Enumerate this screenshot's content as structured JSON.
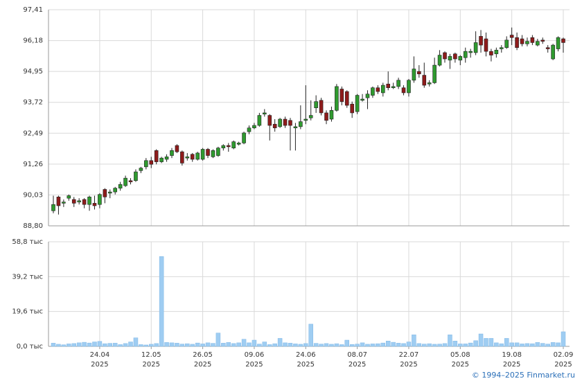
{
  "chart_data": {
    "type": "candlestick",
    "categories": [
      null,
      null,
      null,
      null,
      null,
      null,
      null,
      null,
      null,
      "24.04 2025",
      null,
      null,
      null,
      null,
      null,
      null,
      null,
      null,
      null,
      "12.05 2025",
      null,
      null,
      null,
      null,
      null,
      null,
      null,
      null,
      null,
      "26.05 2025",
      null,
      null,
      null,
      null,
      null,
      null,
      null,
      null,
      null,
      "09.06 2025",
      null,
      null,
      null,
      null,
      null,
      null,
      null,
      null,
      null,
      "24.06 2025",
      null,
      null,
      null,
      null,
      null,
      null,
      null,
      null,
      null,
      "08.07 2025",
      null,
      null,
      null,
      null,
      null,
      null,
      null,
      null,
      null,
      "22.07 2025",
      null,
      null,
      null,
      null,
      null,
      null,
      null,
      null,
      null,
      "05.08 2025",
      null,
      null,
      null,
      null,
      null,
      null,
      null,
      null,
      null,
      "19.08 2025",
      null,
      null,
      null,
      null,
      null,
      null,
      null,
      null,
      null,
      "02.09 2025"
    ],
    "open": [
      89.4,
      89.95,
      89.7,
      89.9,
      89.85,
      89.75,
      89.85,
      89.65,
      89.7,
      89.65,
      90.25,
      90.1,
      90.15,
      90.3,
      90.4,
      90.6,
      90.6,
      91.0,
      91.15,
      91.4,
      91.8,
      91.35,
      91.45,
      91.6,
      92.0,
      91.75,
      91.5,
      91.65,
      91.45,
      91.45,
      91.85,
      91.55,
      91.6,
      91.9,
      92.0,
      91.9,
      92.05,
      92.1,
      92.55,
      92.7,
      92.8,
      93.25,
      93.2,
      92.85,
      92.75,
      93.05,
      93.0,
      92.7,
      92.75,
      93.0,
      93.1,
      93.5,
      93.8,
      93.3,
      93.05,
      93.4,
      94.25,
      94.15,
      93.65,
      93.35,
      93.8,
      93.9,
      94.0,
      94.3,
      94.1,
      94.45,
      94.3,
      94.35,
      94.3,
      94.1,
      94.6,
      94.95,
      94.8,
      94.45,
      94.5,
      95.2,
      95.7,
      95.4,
      95.65,
      95.4,
      95.5,
      95.7,
      95.7,
      96.35,
      96.25,
      95.75,
      95.65,
      95.85,
      95.9,
      96.4,
      96.3,
      96.25,
      96.05,
      96.3,
      96.0,
      96.2,
      95.9,
      95.45,
      95.85,
      96.25
    ],
    "high": [
      90.0,
      90.0,
      89.85,
      90.05,
      89.95,
      89.9,
      89.9,
      90.0,
      90.0,
      90.1,
      90.3,
      90.25,
      90.35,
      90.55,
      90.8,
      90.7,
      91.05,
      91.15,
      91.5,
      91.55,
      91.85,
      91.55,
      91.65,
      91.9,
      92.05,
      91.8,
      91.7,
      91.7,
      91.75,
      91.9,
      91.9,
      91.85,
      91.95,
      92.05,
      92.1,
      92.2,
      92.15,
      92.55,
      92.8,
      92.9,
      93.3,
      93.45,
      93.25,
      93.05,
      93.1,
      93.15,
      93.1,
      92.9,
      93.6,
      94.4,
      93.8,
      94.0,
      93.9,
      93.4,
      93.55,
      94.45,
      94.35,
      94.2,
      93.75,
      94.05,
      94.05,
      94.2,
      94.35,
      94.4,
      94.5,
      94.95,
      94.5,
      94.7,
      94.4,
      94.65,
      95.55,
      95.2,
      95.3,
      94.6,
      95.5,
      95.8,
      95.75,
      95.65,
      95.7,
      95.6,
      95.9,
      95.85,
      96.55,
      96.6,
      96.5,
      95.85,
      95.9,
      96.0,
      96.35,
      96.7,
      96.5,
      96.4,
      96.3,
      96.4,
      96.25,
      96.3,
      96.0,
      96.05,
      96.35,
      96.3
    ],
    "low": [
      89.3,
      89.25,
      89.55,
      89.8,
      89.55,
      89.65,
      89.5,
      89.4,
      89.45,
      89.5,
      89.7,
      89.9,
      90.05,
      90.2,
      90.35,
      90.45,
      90.55,
      90.9,
      91.05,
      91.1,
      91.25,
      91.3,
      91.35,
      91.5,
      91.7,
      91.2,
      91.4,
      91.35,
      91.4,
      91.4,
      91.5,
      91.5,
      91.55,
      91.8,
      91.75,
      91.85,
      92.0,
      92.05,
      92.45,
      92.65,
      92.75,
      93.15,
      92.2,
      92.55,
      92.7,
      92.7,
      91.8,
      91.8,
      92.65,
      92.85,
      93.0,
      93.3,
      93.2,
      92.85,
      92.95,
      93.35,
      93.6,
      93.5,
      93.1,
      93.25,
      93.75,
      93.45,
      93.9,
      94.05,
      93.95,
      94.2,
      94.25,
      94.25,
      94.0,
      93.95,
      94.5,
      94.7,
      94.3,
      94.35,
      94.45,
      95.15,
      95.3,
      95.05,
      95.3,
      95.2,
      95.3,
      95.5,
      95.6,
      95.7,
      95.55,
      95.35,
      95.5,
      95.7,
      95.85,
      96.0,
      95.8,
      95.95,
      95.95,
      96.0,
      95.95,
      96.05,
      95.7,
      95.4,
      95.75,
      95.7
    ],
    "close": [
      89.65,
      89.6,
      89.75,
      90.0,
      89.7,
      89.8,
      89.65,
      89.95,
      89.6,
      90.05,
      89.95,
      90.15,
      90.3,
      90.45,
      90.7,
      90.55,
      90.95,
      91.1,
      91.4,
      91.25,
      91.35,
      91.5,
      91.55,
      91.8,
      91.75,
      91.3,
      91.55,
      91.45,
      91.7,
      91.85,
      91.6,
      91.8,
      91.9,
      92.0,
      91.95,
      92.15,
      92.1,
      92.5,
      92.7,
      92.8,
      93.2,
      93.3,
      92.8,
      92.7,
      93.05,
      92.8,
      92.8,
      92.75,
      92.95,
      93.05,
      93.2,
      93.75,
      93.3,
      93.0,
      93.4,
      94.35,
      93.75,
      93.6,
      93.3,
      94.0,
      93.85,
      94.05,
      94.3,
      94.15,
      94.4,
      94.3,
      94.35,
      94.6,
      94.1,
      94.6,
      95.05,
      94.85,
      94.4,
      94.5,
      95.2,
      95.6,
      95.45,
      95.55,
      95.45,
      95.55,
      95.75,
      95.75,
      96.1,
      96.0,
      95.75,
      95.6,
      95.8,
      95.9,
      96.2,
      96.3,
      95.9,
      96.05,
      96.15,
      96.1,
      96.15,
      96.15,
      95.85,
      96.0,
      96.3,
      96.1
    ],
    "volume": [
      1.8,
      1.2,
      0.9,
      1.4,
      1.6,
      2.0,
      2.3,
      1.9,
      2.5,
      2.8,
      1.5,
      1.7,
      1.8,
      1.0,
      1.6,
      2.5,
      4.8,
      1.0,
      0.8,
      1.2,
      1.6,
      50.5,
      2.2,
      2.0,
      1.8,
      1.3,
      1.5,
      1.2,
      1.9,
      1.4,
      2.0,
      1.7,
      7.5,
      1.8,
      2.2,
      1.6,
      2.0,
      4.0,
      2.0,
      3.5,
      1.3,
      2.5,
      1.0,
      1.5,
      4.5,
      2.0,
      1.8,
      1.4,
      1.2,
      1.6,
      12.5,
      1.7,
      1.3,
      1.6,
      1.2,
      1.5,
      1.0,
      3.5,
      1.1,
      1.3,
      2.0,
      1.2,
      1.4,
      1.5,
      1.9,
      3.0,
      2.3,
      1.8,
      1.6,
      2.5,
      6.5,
      1.6,
      1.3,
      1.5,
      1.2,
      1.3,
      1.6,
      6.5,
      3.0,
      1.4,
      1.4,
      1.9,
      3.2,
      7.0,
      4.5,
      4.5,
      2.0,
      1.5,
      4.5,
      2.0,
      2.0,
      1.4,
      1.6,
      1.5,
      2.2,
      1.7,
      1.3,
      2.2,
      2.0,
      8.2
    ],
    "ylim": [
      88.8,
      97.41
    ],
    "yticks": [
      {
        "value": 88.8,
        "label": "88,80"
      },
      {
        "value": 90.03,
        "label": "90,03"
      },
      {
        "value": 91.26,
        "label": "91,26"
      },
      {
        "value": 92.49,
        "label": "92,49"
      },
      {
        "value": 93.72,
        "label": "93,72"
      },
      {
        "value": 94.95,
        "label": "94,95"
      },
      {
        "value": 96.18,
        "label": "96,18"
      },
      {
        "value": 97.41,
        "label": "97,41"
      }
    ],
    "y2lim": [
      0,
      58.8
    ],
    "y2ticks": [
      {
        "value": 0,
        "label": "0,0 тыс"
      },
      {
        "value": 19.6,
        "label": "19,6 тыс"
      },
      {
        "value": 39.2,
        "label": "39,2 тыс"
      },
      {
        "value": 58.8,
        "label": "58,8 тыс"
      }
    ],
    "up_color": "#2f9a2f",
    "down_color": "#8e1b1b",
    "volume_color": "#9fcdf2",
    "grid": true
  },
  "footer": "© 1994–2025 Finmarket.ru"
}
